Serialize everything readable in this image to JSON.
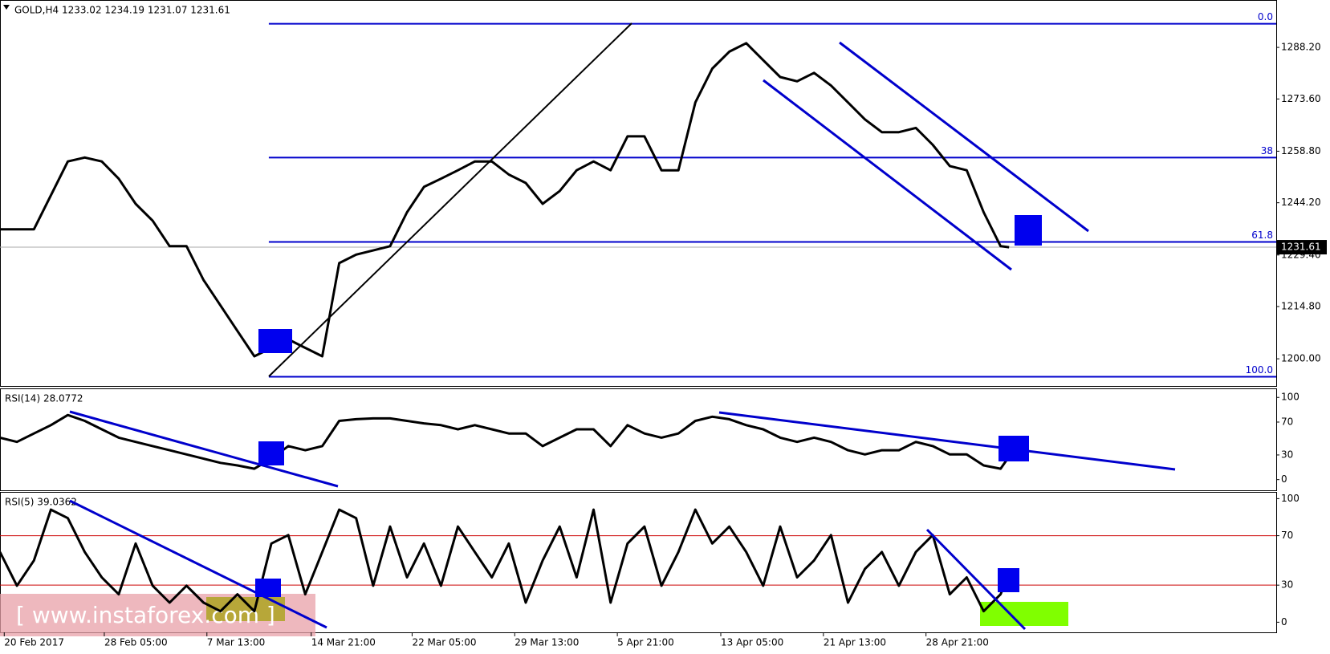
{
  "watermark": "[ www.instaforex.com ]",
  "chart_data": [
    {
      "type": "line",
      "title": "GOLD,H4 1233.02 1234.19 1231.07 1231.61",
      "x": [
        0,
        2,
        4,
        6,
        8,
        10,
        12,
        14,
        16,
        18,
        20,
        22,
        24,
        26,
        28,
        30,
        32,
        34,
        36,
        38,
        40,
        42,
        44,
        46,
        48,
        50,
        52,
        54,
        56,
        58,
        60,
        62,
        64,
        66,
        68,
        70,
        72,
        74,
        76,
        78,
        80,
        82,
        84,
        86,
        88,
        90,
        92,
        94,
        96,
        98,
        100,
        102,
        104,
        106,
        108,
        110,
        112,
        114,
        116,
        118,
        119
      ],
      "values": [
        1236.7,
        1236.7,
        1236.7,
        1246.3,
        1255.9,
        1257.0,
        1255.9,
        1251.0,
        1243.9,
        1239.1,
        1231.9,
        1231.9,
        1222.3,
        1215.1,
        1207.9,
        1200.7,
        1203.1,
        1205.5,
        1203.1,
        1200.7,
        1227.1,
        1229.5,
        1230.7,
        1231.9,
        1241.5,
        1248.7,
        1251.0,
        1253.4,
        1255.9,
        1255.9,
        1252.2,
        1249.8,
        1243.9,
        1247.5,
        1253.4,
        1255.9,
        1253.4,
        1263.0,
        1263.0,
        1253.4,
        1253.4,
        1272.6,
        1282.2,
        1287.0,
        1289.4,
        1284.6,
        1279.8,
        1278.6,
        1281.0,
        1277.4,
        1272.6,
        1267.8,
        1264.2,
        1264.2,
        1265.4,
        1260.6,
        1254.6,
        1253.4,
        1241.5,
        1231.9,
        1231.6
      ],
      "color": "#000000",
      "xlim": [
        0,
        150.5
      ],
      "ylim": [
        1192.3,
        1301.4
      ],
      "yticks": [
        {
          "value": 1200,
          "label": "1200.00"
        },
        {
          "value": 1214.8,
          "label": "1214.80"
        },
        {
          "value": 1229.4,
          "label": "1229.40"
        },
        {
          "value": 1244.2,
          "label": "1244.20"
        },
        {
          "value": 1258.8,
          "label": "1258.80"
        },
        {
          "value": 1273.6,
          "label": "1273.60"
        },
        {
          "value": 1288.2,
          "label": "1288.20"
        }
      ],
      "last_price": 1231.61,
      "fib_color": "#0000cc",
      "fib_x_start": 31.7,
      "fib_levels": [
        {
          "value": 1294.9,
          "label": "0.0"
        },
        {
          "value": 1257.0,
          "label": "38"
        },
        {
          "value": 1233.1,
          "label": "61.8"
        },
        {
          "value": 1194.9,
          "label": "100.0"
        }
      ]
    },
    {
      "type": "line",
      "title": "RSI(14) 28.0772",
      "x": [
        0,
        2,
        4,
        6,
        8,
        10,
        12,
        14,
        16,
        18,
        20,
        22,
        24,
        26,
        28,
        30,
        32,
        34,
        36,
        38,
        40,
        42,
        44,
        46,
        48,
        50,
        52,
        54,
        56,
        58,
        60,
        62,
        64,
        66,
        68,
        70,
        72,
        74,
        76,
        78,
        80,
        82,
        84,
        86,
        88,
        90,
        92,
        94,
        96,
        98,
        100,
        102,
        104,
        106,
        108,
        110,
        112,
        114,
        116,
        118,
        119
      ],
      "values": [
        51.0,
        45.9,
        56.1,
        66.3,
        78.6,
        71.4,
        61.2,
        51.0,
        45.9,
        40.8,
        35.7,
        30.6,
        25.5,
        20.4,
        17.3,
        13.3,
        25.5,
        40.8,
        35.7,
        40.8,
        71.4,
        73.5,
        74.5,
        74.5,
        71.4,
        68.4,
        66.3,
        61.2,
        66.3,
        61.2,
        56.1,
        56.1,
        40.8,
        51.0,
        61.2,
        61.2,
        40.8,
        66.3,
        56.1,
        51.0,
        56.1,
        71.4,
        76.5,
        73.5,
        66.3,
        61.2,
        51.0,
        45.9,
        51.0,
        45.9,
        35.7,
        30.6,
        35.7,
        35.7,
        45.9,
        40.8,
        30.6,
        30.6,
        17.3,
        13.3,
        28.1
      ],
      "color": "#000000",
      "xlim": [
        0,
        150.5
      ],
      "ylim": [
        -13,
        110
      ],
      "yticks": [
        0,
        30,
        70,
        100
      ]
    },
    {
      "type": "line",
      "title": "RSI(5) 39.0362",
      "x": [
        0,
        2,
        4,
        6,
        8,
        10,
        12,
        14,
        16,
        18,
        20,
        22,
        24,
        26,
        28,
        30,
        32,
        34,
        36,
        38,
        40,
        42,
        44,
        46,
        48,
        50,
        52,
        54,
        56,
        58,
        60,
        62,
        64,
        66,
        68,
        70,
        72,
        74,
        76,
        78,
        80,
        82,
        84,
        86,
        88,
        90,
        92,
        94,
        96,
        98,
        100,
        102,
        104,
        106,
        108,
        110,
        112,
        114,
        116,
        118,
        119
      ],
      "values": [
        56.8,
        29.5,
        50.0,
        91.1,
        84.2,
        56.8,
        36.3,
        22.6,
        63.7,
        29.5,
        15.8,
        29.5,
        15.8,
        8.9,
        22.6,
        8.9,
        63.7,
        70.5,
        22.6,
        56.8,
        91.1,
        84.2,
        29.5,
        77.4,
        36.3,
        63.7,
        29.5,
        77.4,
        56.8,
        36.3,
        63.7,
        15.8,
        50.0,
        77.4,
        36.3,
        91.1,
        15.8,
        63.7,
        77.4,
        29.5,
        56.8,
        91.1,
        63.7,
        77.4,
        56.8,
        29.5,
        77.4,
        36.3,
        50.0,
        70.5,
        15.8,
        43.2,
        56.8,
        29.5,
        56.8,
        70.5,
        22.6,
        36.3,
        8.9,
        22.6,
        39.0
      ],
      "color": "#000000",
      "xlim": [
        0,
        150.5
      ],
      "ylim": [
        -8.2,
        104.8
      ],
      "yticks": [
        0,
        30,
        70,
        100
      ],
      "levels": [
        30,
        70
      ],
      "level_color": "#cc0000",
      "xticks": [
        {
          "value": 0.5,
          "label": "20 Feb 2017"
        },
        {
          "value": 12.3,
          "label": "28 Feb 05:00"
        },
        {
          "value": 24.4,
          "label": "7 Mar 13:00"
        },
        {
          "value": 36.7,
          "label": "14 Mar 21:00"
        },
        {
          "value": 48.6,
          "label": "22 Mar 05:00"
        },
        {
          "value": 60.7,
          "label": "29 Mar 13:00"
        },
        {
          "value": 72.8,
          "label": "5 Apr 21:00"
        },
        {
          "value": 85.0,
          "label": "13 Apr 05:00"
        },
        {
          "value": 97.1,
          "label": "21 Apr 13:00"
        },
        {
          "value": 109.2,
          "label": "28 Apr 21:00"
        }
      ]
    }
  ]
}
